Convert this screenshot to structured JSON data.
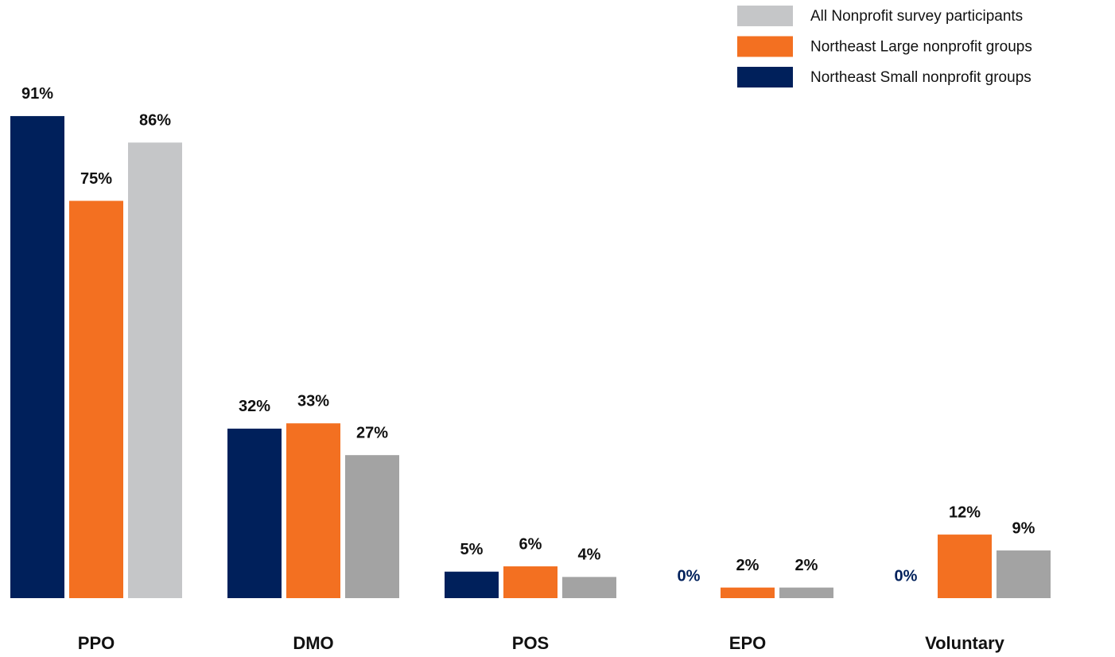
{
  "chart_data": {
    "type": "bar",
    "categories": [
      "PPO",
      "DMO",
      "POS",
      "EPO",
      "Voluntary"
    ],
    "series": [
      {
        "name": "Northeast Small nonprofit groups",
        "color": "#00205b",
        "values": [
          91,
          32,
          5,
          0,
          0
        ],
        "value_labels": [
          "91%",
          "32%",
          "5%",
          "0%",
          "0%"
        ]
      },
      {
        "name": "Northeast Large nonprofit groups",
        "color": "#f37021",
        "values": [
          75,
          33,
          6,
          2,
          12
        ],
        "value_labels": [
          "75%",
          "33%",
          "6%",
          "2%",
          "12%"
        ]
      },
      {
        "name": "All Nonprofit survey participants",
        "color": "#a3a3a3",
        "colors": [
          "#c5c6c8",
          "#a3a3a3",
          "#a3a3a3",
          "#a3a3a3",
          "#a3a3a3"
        ],
        "values": [
          86,
          27,
          4,
          2,
          9
        ],
        "value_labels": [
          "86%",
          "27%",
          "4%",
          "2%",
          "9%"
        ]
      }
    ],
    "legend": "top-right"
  }
}
